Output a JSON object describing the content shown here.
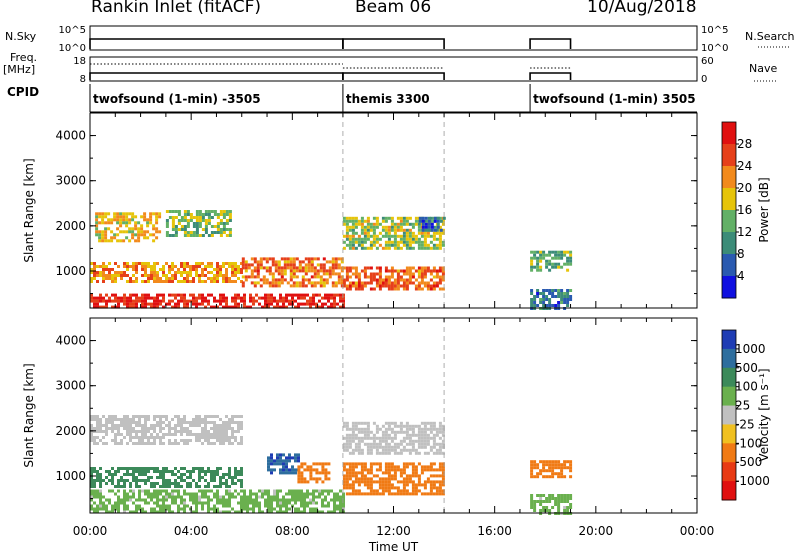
{
  "header": {
    "station": "Rankin Inlet (fitACF)",
    "beam": "Beam 06",
    "date": "10/Aug/2018"
  },
  "side_labels": {
    "nsky": "N.Sky",
    "freq_line1": "Freq.",
    "freq_line2": "[MHz]",
    "cpid": "CPID",
    "nsearch": "N.Search",
    "nave": "Nave",
    "nsky_ticks": [
      "10^5",
      "10^0"
    ],
    "freq_ticks": [
      "18",
      "8"
    ],
    "nave_ticks": [
      "60",
      "0"
    ]
  },
  "cpid_blocks": [
    {
      "label": "twofsound (1-min) -3505",
      "start_h": 0.0,
      "end_h": 10.0
    },
    {
      "label": "themis 3300",
      "start_h": 10.0,
      "end_h": 14.0
    },
    {
      "label": "twofsound (1-min) 3505",
      "start_h": 17.4,
      "end_h": 19.0
    }
  ],
  "chart_data": [
    {
      "type": "heatmap",
      "panel": "power",
      "title": "Rankin Inlet (fitACF) Beam 06 10/Aug/2018",
      "xlabel": "Time UT",
      "ylabel": "Slant Range [km]",
      "xticks": [
        "00:00",
        "04:00",
        "08:00",
        "12:00",
        "16:00",
        "20:00",
        "00:00"
      ],
      "xlim": [
        0,
        24
      ],
      "yticks": [
        "1000",
        "2000",
        "3000",
        "4000"
      ],
      "ylim": [
        180,
        4500
      ],
      "colorbar": {
        "label": "Power [dB]",
        "ticks": [
          "4",
          "8",
          "12",
          "16",
          "20",
          "24",
          "28"
        ],
        "range": [
          0,
          30
        ],
        "colors": [
          "#1010e0",
          "#2a5ab0",
          "#3c8c78",
          "#62b066",
          "#e6c40a",
          "#f28a1c",
          "#e6401a",
          "#e01010"
        ]
      },
      "scatter_blocks": [
        {
          "t0": 0.0,
          "t1": 10.0,
          "r0": 200,
          "r1": 500,
          "value": 27
        },
        {
          "t0": 0.2,
          "t1": 2.8,
          "r0": 1700,
          "r1": 2300,
          "value": 18
        },
        {
          "t0": 3.0,
          "t1": 5.6,
          "r0": 1800,
          "r1": 2350,
          "value": 14
        },
        {
          "t0": 0.0,
          "t1": 6.0,
          "r0": 800,
          "r1": 1200,
          "value": 20
        },
        {
          "t0": 6.0,
          "t1": 10.0,
          "r0": 700,
          "r1": 1300,
          "value": 22
        },
        {
          "t0": 10.0,
          "t1": 14.0,
          "r0": 600,
          "r1": 1100,
          "value": 23
        },
        {
          "t0": 10.0,
          "t1": 14.0,
          "r0": 1500,
          "r1": 2200,
          "value": 15
        },
        {
          "t0": 13.0,
          "t1": 14.0,
          "r0": 1900,
          "r1": 2200,
          "value": 6
        },
        {
          "t0": 17.4,
          "t1": 19.0,
          "r0": 1050,
          "r1": 1450,
          "value": 12
        },
        {
          "t0": 17.4,
          "t1": 19.0,
          "r0": 200,
          "r1": 600,
          "value": 8
        }
      ]
    },
    {
      "type": "heatmap",
      "panel": "velocity",
      "xlabel": "Time UT",
      "ylabel": "Slant Range [km]",
      "xticks": [
        "00:00",
        "04:00",
        "08:00",
        "12:00",
        "16:00",
        "20:00",
        "00:00"
      ],
      "xlim": [
        0,
        24
      ],
      "yticks": [
        "1000",
        "2000",
        "3000",
        "4000"
      ],
      "ylim": [
        180,
        4500
      ],
      "colorbar": {
        "label": "Velocity [m s⁻¹]",
        "ticks": [
          "1000",
          "500",
          "100",
          "25",
          "-25",
          "-100",
          "-500",
          "-1000"
        ],
        "colors": [
          "#1e3cb4",
          "#2e6e9e",
          "#3c8a5a",
          "#6ab04e",
          "#c0c0c0",
          "#f0c020",
          "#f07a14",
          "#e83a14",
          "#e01010"
        ]
      },
      "scatter_blocks": [
        {
          "t0": 0.0,
          "t1": 6.0,
          "r0": 1700,
          "r1": 2350,
          "value": 0
        },
        {
          "t0": 0.0,
          "t1": 6.0,
          "r0": 800,
          "r1": 1200,
          "value": 300
        },
        {
          "t0": 0.0,
          "t1": 10.0,
          "r0": 200,
          "r1": 700,
          "value": 50
        },
        {
          "t0": 7.0,
          "t1": 8.2,
          "r0": 1100,
          "r1": 1500,
          "value": 900
        },
        {
          "t0": 8.2,
          "t1": 9.4,
          "r0": 900,
          "r1": 1300,
          "value": -300
        },
        {
          "t0": 10.0,
          "t1": 14.0,
          "r0": 1500,
          "r1": 2200,
          "value": 0
        },
        {
          "t0": 10.0,
          "t1": 14.0,
          "r0": 600,
          "r1": 1300,
          "value": -300
        },
        {
          "t0": 17.4,
          "t1": 19.0,
          "r0": 1000,
          "r1": 1350,
          "value": -300
        },
        {
          "t0": 17.4,
          "t1": 19.0,
          "r0": 200,
          "r1": 600,
          "value": 50
        }
      ]
    }
  ]
}
